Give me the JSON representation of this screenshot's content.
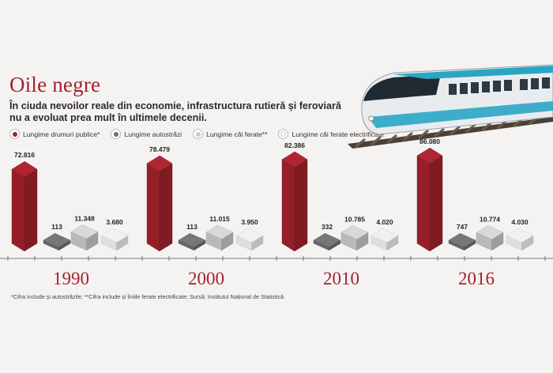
{
  "title": "Oile negre",
  "subtitle": "În ciuda nevoilor reale din economie, infrastructura rutieră și feroviară nu a evoluat prea mult în ultimele decenii.",
  "footnote": "*Cifra include și autostrăzile; **Cifra include și liniile ferate electrificate; Sursă: Institutul Național de Statistică",
  "colors": {
    "red": "#a2222d",
    "dark_gray": "#6e6e6e",
    "light_gray": "#c9c9c9",
    "white": "#f1f1f1",
    "accent": "#a2222d"
  },
  "chart_data": {
    "type": "bar",
    "style": "3d-isometric",
    "categories": [
      "1990",
      "2000",
      "2010",
      "2016"
    ],
    "series": [
      {
        "name": "Lungime drumuri publice*",
        "color": "#a2222d",
        "values": [
          72816,
          78479,
          82386,
          86080
        ],
        "labels": [
          "72.816",
          "78.479",
          "82.386",
          "86.080"
        ]
      },
      {
        "name": "Lungime autostrăzi",
        "color": "#6e6e6e",
        "values": [
          113,
          113,
          332,
          747
        ],
        "labels": [
          "113",
          "113",
          "332",
          "747"
        ]
      },
      {
        "name": "Lungime căi ferate**",
        "color": "#c9c9c9",
        "values": [
          11348,
          11015,
          10785,
          10774
        ],
        "labels": [
          "11.348",
          "11.015",
          "10.785",
          "10.774"
        ]
      },
      {
        "name": "Lungime căi ferate electrificate",
        "color": "#f1f1f1",
        "values": [
          3680,
          3950,
          4020,
          4030
        ],
        "labels": [
          "3.680",
          "3.950",
          "4.020",
          "4.030"
        ]
      }
    ],
    "ylim": [
      0,
      90000
    ],
    "xlabel": "",
    "ylabel": "",
    "legend": "top-left"
  }
}
